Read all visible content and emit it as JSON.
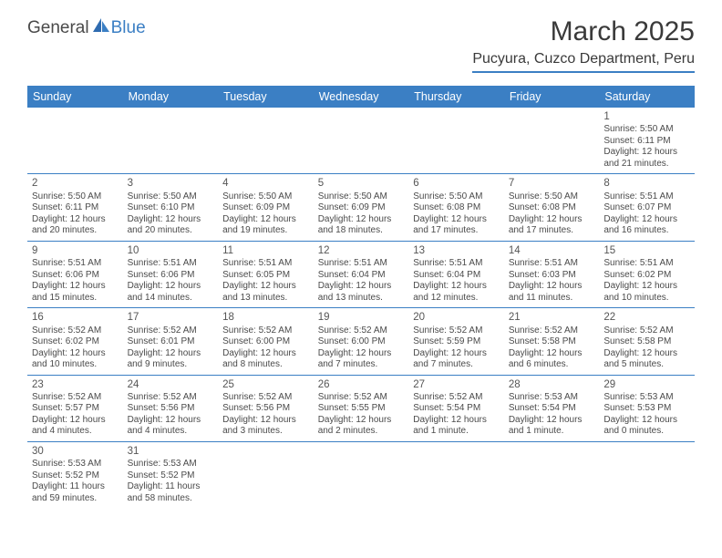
{
  "logo": {
    "general": "General",
    "blue": "Blue"
  },
  "title": "March 2025",
  "location": "Pucyura, Cuzco Department, Peru",
  "colors": {
    "accent": "#3b7fc4",
    "text": "#4a4a4a",
    "header_bg": "#3b7fc4",
    "header_fg": "#ffffff"
  },
  "days_of_week": [
    "Sunday",
    "Monday",
    "Tuesday",
    "Wednesday",
    "Thursday",
    "Friday",
    "Saturday"
  ],
  "weeks": [
    [
      null,
      null,
      null,
      null,
      null,
      null,
      {
        "n": "1",
        "sunrise": "5:50 AM",
        "sunset": "6:11 PM",
        "daylight": "12 hours and 21 minutes."
      }
    ],
    [
      {
        "n": "2",
        "sunrise": "5:50 AM",
        "sunset": "6:11 PM",
        "daylight": "12 hours and 20 minutes."
      },
      {
        "n": "3",
        "sunrise": "5:50 AM",
        "sunset": "6:10 PM",
        "daylight": "12 hours and 20 minutes."
      },
      {
        "n": "4",
        "sunrise": "5:50 AM",
        "sunset": "6:09 PM",
        "daylight": "12 hours and 19 minutes."
      },
      {
        "n": "5",
        "sunrise": "5:50 AM",
        "sunset": "6:09 PM",
        "daylight": "12 hours and 18 minutes."
      },
      {
        "n": "6",
        "sunrise": "5:50 AM",
        "sunset": "6:08 PM",
        "daylight": "12 hours and 17 minutes."
      },
      {
        "n": "7",
        "sunrise": "5:50 AM",
        "sunset": "6:08 PM",
        "daylight": "12 hours and 17 minutes."
      },
      {
        "n": "8",
        "sunrise": "5:51 AM",
        "sunset": "6:07 PM",
        "daylight": "12 hours and 16 minutes."
      }
    ],
    [
      {
        "n": "9",
        "sunrise": "5:51 AM",
        "sunset": "6:06 PM",
        "daylight": "12 hours and 15 minutes."
      },
      {
        "n": "10",
        "sunrise": "5:51 AM",
        "sunset": "6:06 PM",
        "daylight": "12 hours and 14 minutes."
      },
      {
        "n": "11",
        "sunrise": "5:51 AM",
        "sunset": "6:05 PM",
        "daylight": "12 hours and 13 minutes."
      },
      {
        "n": "12",
        "sunrise": "5:51 AM",
        "sunset": "6:04 PM",
        "daylight": "12 hours and 13 minutes."
      },
      {
        "n": "13",
        "sunrise": "5:51 AM",
        "sunset": "6:04 PM",
        "daylight": "12 hours and 12 minutes."
      },
      {
        "n": "14",
        "sunrise": "5:51 AM",
        "sunset": "6:03 PM",
        "daylight": "12 hours and 11 minutes."
      },
      {
        "n": "15",
        "sunrise": "5:51 AM",
        "sunset": "6:02 PM",
        "daylight": "12 hours and 10 minutes."
      }
    ],
    [
      {
        "n": "16",
        "sunrise": "5:52 AM",
        "sunset": "6:02 PM",
        "daylight": "12 hours and 10 minutes."
      },
      {
        "n": "17",
        "sunrise": "5:52 AM",
        "sunset": "6:01 PM",
        "daylight": "12 hours and 9 minutes."
      },
      {
        "n": "18",
        "sunrise": "5:52 AM",
        "sunset": "6:00 PM",
        "daylight": "12 hours and 8 minutes."
      },
      {
        "n": "19",
        "sunrise": "5:52 AM",
        "sunset": "6:00 PM",
        "daylight": "12 hours and 7 minutes."
      },
      {
        "n": "20",
        "sunrise": "5:52 AM",
        "sunset": "5:59 PM",
        "daylight": "12 hours and 7 minutes."
      },
      {
        "n": "21",
        "sunrise": "5:52 AM",
        "sunset": "5:58 PM",
        "daylight": "12 hours and 6 minutes."
      },
      {
        "n": "22",
        "sunrise": "5:52 AM",
        "sunset": "5:58 PM",
        "daylight": "12 hours and 5 minutes."
      }
    ],
    [
      {
        "n": "23",
        "sunrise": "5:52 AM",
        "sunset": "5:57 PM",
        "daylight": "12 hours and 4 minutes."
      },
      {
        "n": "24",
        "sunrise": "5:52 AM",
        "sunset": "5:56 PM",
        "daylight": "12 hours and 4 minutes."
      },
      {
        "n": "25",
        "sunrise": "5:52 AM",
        "sunset": "5:56 PM",
        "daylight": "12 hours and 3 minutes."
      },
      {
        "n": "26",
        "sunrise": "5:52 AM",
        "sunset": "5:55 PM",
        "daylight": "12 hours and 2 minutes."
      },
      {
        "n": "27",
        "sunrise": "5:52 AM",
        "sunset": "5:54 PM",
        "daylight": "12 hours and 1 minute."
      },
      {
        "n": "28",
        "sunrise": "5:53 AM",
        "sunset": "5:54 PM",
        "daylight": "12 hours and 1 minute."
      },
      {
        "n": "29",
        "sunrise": "5:53 AM",
        "sunset": "5:53 PM",
        "daylight": "12 hours and 0 minutes."
      }
    ],
    [
      {
        "n": "30",
        "sunrise": "5:53 AM",
        "sunset": "5:52 PM",
        "daylight": "11 hours and 59 minutes."
      },
      {
        "n": "31",
        "sunrise": "5:53 AM",
        "sunset": "5:52 PM",
        "daylight": "11 hours and 58 minutes."
      },
      null,
      null,
      null,
      null,
      null
    ]
  ],
  "labels": {
    "sunrise": "Sunrise:",
    "sunset": "Sunset:",
    "daylight": "Daylight:"
  }
}
